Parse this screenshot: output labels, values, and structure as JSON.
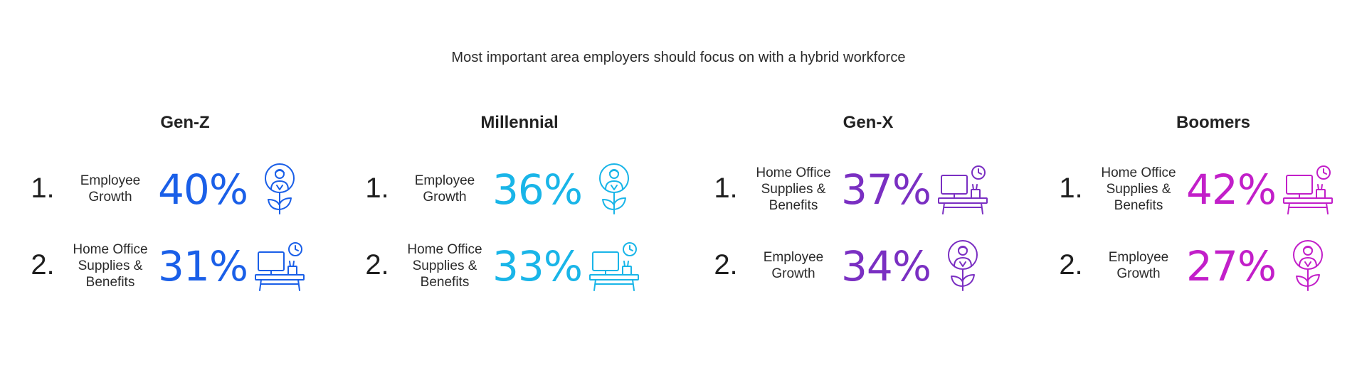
{
  "title": "Most important area employers should focus on with a hybrid workforce",
  "chart_data": {
    "type": "table",
    "title": "Most important area employers should focus on with a hybrid workforce",
    "groups": [
      {
        "name": "Gen-Z",
        "color": "#1a5fe8",
        "items": [
          {
            "rank": "1.",
            "label": "Employee\nGrowth",
            "value": 40,
            "display": "40%",
            "icon": "person-growth-icon"
          },
          {
            "rank": "2.",
            "label": "Home Office\nSupplies &\nBenefits",
            "value": 31,
            "display": "31%",
            "icon": "desk-icon"
          }
        ]
      },
      {
        "name": "Millennial",
        "color": "#19b5e8",
        "items": [
          {
            "rank": "1.",
            "label": "Employee\nGrowth",
            "value": 36,
            "display": "36%",
            "icon": "person-growth-icon"
          },
          {
            "rank": "2.",
            "label": "Home Office\nSupplies &\nBenefits",
            "value": 33,
            "display": "33%",
            "icon": "desk-icon"
          }
        ]
      },
      {
        "name": "Gen-X",
        "color": "#7a2fc2",
        "items": [
          {
            "rank": "1.",
            "label": "Home Office\nSupplies &\nBenefits",
            "value": 37,
            "display": "37%",
            "icon": "desk-icon"
          },
          {
            "rank": "2.",
            "label": "Employee\nGrowth",
            "value": 34,
            "display": "34%",
            "icon": "person-growth-icon"
          }
        ]
      },
      {
        "name": "Boomers",
        "color": "#c21fc9",
        "items": [
          {
            "rank": "1.",
            "label": "Home Office\nSupplies &\nBenefits",
            "value": 42,
            "display": "42%",
            "icon": "desk-icon"
          },
          {
            "rank": "2.",
            "label": "Employee\nGrowth",
            "value": 27,
            "display": "27%",
            "icon": "person-growth-icon"
          }
        ]
      }
    ]
  }
}
